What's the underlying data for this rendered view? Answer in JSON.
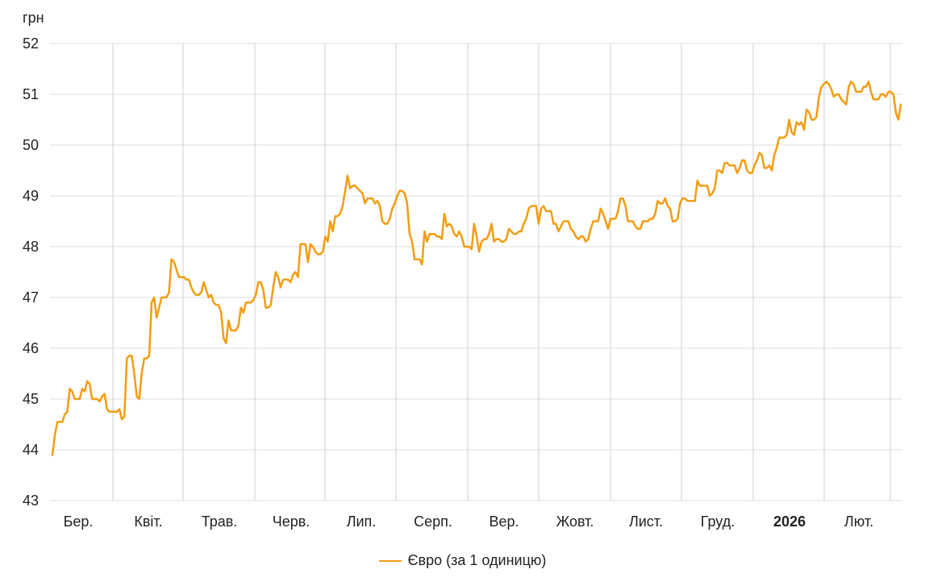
{
  "chart_data": {
    "type": "line",
    "ylabel": "грн",
    "ylim": [
      43,
      52
    ],
    "y_ticks": [
      "52",
      "51",
      "50",
      "49",
      "48",
      "47",
      "46",
      "45",
      "44",
      "43"
    ],
    "x_ticks": [
      {
        "label": "Бер.",
        "bold": false
      },
      {
        "label": "Квіт.",
        "bold": false
      },
      {
        "label": "Трав.",
        "bold": false
      },
      {
        "label": "Черв.",
        "bold": false
      },
      {
        "label": "Лип.",
        "bold": false
      },
      {
        "label": "Серп.",
        "bold": false
      },
      {
        "label": "Вер.",
        "bold": false
      },
      {
        "label": "Жовт.",
        "bold": false
      },
      {
        "label": "Лист.",
        "bold": false
      },
      {
        "label": "Груд.",
        "bold": false
      },
      {
        "label": "2026",
        "bold": true
      },
      {
        "label": "Лют.",
        "bold": false
      }
    ],
    "grid": true,
    "legend_position": "bottom-center",
    "series": [
      {
        "name": "Євро (за 1 одиницю)",
        "color": "#f29d12",
        "values": [
          43.9,
          44.3,
          44.55,
          44.55,
          44.55,
          44.7,
          44.75,
          45.2,
          45.15,
          45.0,
          45.0,
          45.0,
          45.2,
          45.15,
          45.35,
          45.3,
          45.0,
          45.0,
          45.0,
          44.95,
          45.05,
          45.1,
          44.8,
          44.75,
          44.75,
          44.75,
          44.75,
          44.8,
          44.6,
          44.65,
          45.8,
          45.85,
          45.85,
          45.5,
          45.05,
          45.0,
          45.5,
          45.8,
          45.8,
          45.85,
          46.9,
          47.0,
          46.6,
          46.8,
          47.0,
          47.0,
          47.0,
          47.1,
          47.75,
          47.7,
          47.55,
          47.4,
          47.4,
          47.4,
          47.35,
          47.35,
          47.2,
          47.1,
          47.05,
          47.05,
          47.1,
          47.3,
          47.15,
          47.0,
          47.05,
          46.9,
          46.85,
          46.85,
          46.7,
          46.2,
          46.1,
          46.55,
          46.35,
          46.35,
          46.35,
          46.45,
          46.8,
          46.7,
          46.9,
          46.9,
          46.9,
          46.95,
          47.05,
          47.3,
          47.3,
          47.15,
          46.8,
          46.8,
          46.85,
          47.2,
          47.5,
          47.4,
          47.2,
          47.35,
          47.35,
          47.35,
          47.3,
          47.45,
          47.5,
          47.4,
          48.05,
          48.05,
          48.05,
          47.7,
          48.05,
          48.0,
          47.9,
          47.85,
          47.85,
          47.9,
          48.2,
          48.1,
          48.5,
          48.3,
          48.6,
          48.6,
          48.65,
          48.8,
          49.1,
          49.4,
          49.15,
          49.2,
          49.2,
          49.15,
          49.1,
          49.05,
          48.85,
          48.95,
          48.95,
          48.95,
          48.85,
          48.9,
          48.8,
          48.5,
          48.45,
          48.45,
          48.55,
          48.75,
          48.85,
          49.0,
          49.1,
          49.1,
          49.05,
          48.85,
          48.25,
          48.1,
          47.75,
          47.75,
          47.75,
          47.65,
          48.3,
          48.1,
          48.25,
          48.25,
          48.25,
          48.2,
          48.2,
          48.15,
          48.65,
          48.4,
          48.45,
          48.4,
          48.25,
          48.2,
          48.3,
          48.2,
          48.0,
          48.0,
          48.0,
          47.95,
          48.45,
          48.2,
          47.9,
          48.1,
          48.15,
          48.15,
          48.25,
          48.45,
          48.1,
          48.15,
          48.15,
          48.1,
          48.1,
          48.15,
          48.35,
          48.3,
          48.25,
          48.25,
          48.3,
          48.3,
          48.45,
          48.55,
          48.75,
          48.8,
          48.8,
          48.8,
          48.45,
          48.75,
          48.8,
          48.7,
          48.7,
          48.7,
          48.45,
          48.45,
          48.3,
          48.4,
          48.5,
          48.5,
          48.5,
          48.35,
          48.3,
          48.2,
          48.15,
          48.2,
          48.2,
          48.1,
          48.15,
          48.35,
          48.5,
          48.5,
          48.5,
          48.75,
          48.65,
          48.5,
          48.35,
          48.55,
          48.55,
          48.55,
          48.7,
          48.95,
          48.95,
          48.8,
          48.5,
          48.5,
          48.5,
          48.4,
          48.35,
          48.35,
          48.5,
          48.5,
          48.5,
          48.55,
          48.55,
          48.65,
          48.9,
          48.85,
          48.85,
          48.95,
          48.8,
          48.75,
          48.5,
          48.5,
          48.55,
          48.85,
          48.95,
          48.95,
          48.9,
          48.9,
          48.9,
          48.9,
          49.3,
          49.2,
          49.2,
          49.2,
          49.2,
          49.0,
          49.05,
          49.15,
          49.5,
          49.5,
          49.45,
          49.65,
          49.65,
          49.6,
          49.6,
          49.6,
          49.45,
          49.55,
          49.7,
          49.7,
          49.5,
          49.45,
          49.45,
          49.6,
          49.7,
          49.85,
          49.8,
          49.55,
          49.55,
          49.6,
          49.5,
          49.8,
          49.95,
          50.15,
          50.15,
          50.15,
          50.2,
          50.5,
          50.25,
          50.2,
          50.45,
          50.4,
          50.45,
          50.3,
          50.7,
          50.65,
          50.5,
          50.5,
          50.55,
          50.95,
          51.15,
          51.2,
          51.25,
          51.2,
          51.1,
          50.95,
          51.0,
          51.0,
          50.9,
          50.85,
          50.8,
          51.15,
          51.25,
          51.2,
          51.05,
          51.05,
          51.05,
          51.15,
          51.15,
          51.25,
          51.05,
          50.9,
          50.9,
          50.9,
          51.0,
          51.0,
          50.95,
          51.05,
          51.05,
          51.0,
          50.65,
          50.5,
          50.8
        ]
      }
    ]
  }
}
